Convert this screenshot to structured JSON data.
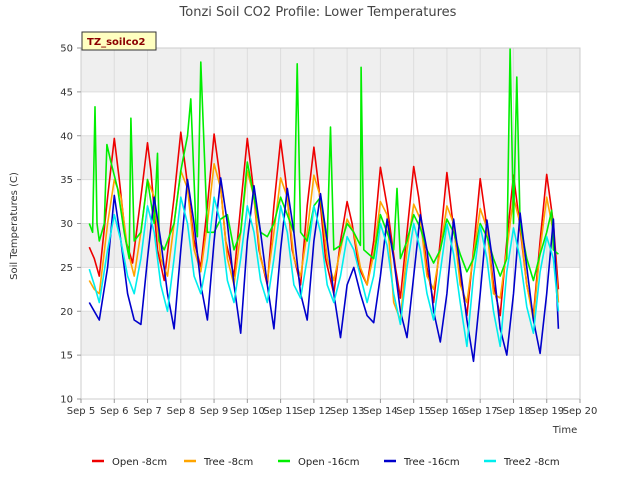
{
  "chart_data": {
    "type": "line",
    "title": "Tonzi Soil CO2 Profile: Lower Temperatures",
    "xlabel": "Time",
    "ylabel": "Soil Temperatures (C)",
    "tag": "TZ_soilco2",
    "xlim": [
      5,
      20
    ],
    "ylim": [
      10,
      50
    ],
    "x_ticks": [
      5,
      6,
      7,
      8,
      9,
      10,
      11,
      12,
      13,
      14,
      15,
      16,
      17,
      18,
      19,
      20
    ],
    "x_tick_labels": [
      "Sep 5",
      "Sep 6",
      "Sep 7",
      "Sep 8",
      "Sep 9",
      "Sep 10",
      "Sep 11",
      "Sep 12",
      "Sep 13",
      "Sep 14",
      "Sep 15",
      "Sep 16",
      "Sep 17",
      "Sep 18",
      "Sep 19",
      "Sep 20"
    ],
    "y_ticks": [
      10,
      15,
      20,
      25,
      30,
      35,
      40,
      45,
      50
    ],
    "y_tick_labels": [
      "10",
      "15",
      "20",
      "25",
      "30",
      "35",
      "40",
      "45",
      "50"
    ],
    "grid": true,
    "legend_position": "bottom",
    "series": [
      {
        "name": "Open -8cm",
        "color": "#ee0000",
        "x": [
          5.25,
          5.4,
          5.55,
          5.8,
          6.0,
          6.15,
          6.35,
          6.55,
          6.8,
          7.0,
          7.1,
          7.3,
          7.5,
          7.8,
          8.0,
          8.15,
          8.4,
          8.6,
          8.8,
          9.0,
          9.15,
          9.35,
          9.6,
          9.8,
          10.0,
          10.15,
          10.35,
          10.6,
          10.8,
          11.0,
          11.15,
          11.35,
          11.6,
          11.8,
          12.0,
          12.15,
          12.35,
          12.6,
          12.8,
          13.0,
          13.15,
          13.35,
          13.6,
          13.8,
          14.0,
          14.2,
          14.45,
          14.6,
          14.8,
          15.0,
          15.15,
          15.4,
          15.6,
          15.8,
          16.0,
          16.15,
          16.4,
          16.6,
          16.8,
          17.0,
          17.15,
          17.4,
          17.6,
          17.8,
          18.0,
          18.15,
          18.4,
          18.6,
          18.8,
          19.0,
          19.2,
          19.35
        ],
        "y": [
          27.3,
          26.0,
          24.0,
          33.0,
          39.7,
          35.0,
          28.0,
          25.5,
          33.0,
          39.2,
          36.0,
          27.0,
          23.5,
          33.0,
          40.4,
          36.0,
          28.0,
          25.0,
          32.0,
          40.2,
          36.0,
          28.0,
          24.0,
          32.0,
          39.7,
          35.0,
          27.0,
          23.0,
          32.0,
          39.5,
          35.0,
          27.0,
          23.0,
          32.0,
          38.7,
          34.0,
          26.0,
          22.0,
          28.0,
          32.5,
          30.0,
          25.0,
          23.0,
          28.0,
          36.4,
          32.0,
          25.0,
          21.5,
          29.0,
          36.5,
          33.0,
          25.0,
          21.0,
          28.0,
          35.8,
          31.0,
          24.0,
          19.5,
          27.0,
          35.1,
          31.0,
          23.0,
          19.5,
          28.0,
          35.5,
          31.0,
          23.0,
          19.5,
          28.0,
          35.6,
          30.0,
          22.5
        ]
      },
      {
        "name": "Tree -8cm",
        "color": "#ffa500",
        "x": [
          5.25,
          5.4,
          5.55,
          5.8,
          6.0,
          6.2,
          6.4,
          6.6,
          6.8,
          7.0,
          7.2,
          7.4,
          7.6,
          7.8,
          8.0,
          8.2,
          8.4,
          8.6,
          8.8,
          9.0,
          9.2,
          9.4,
          9.6,
          9.8,
          10.0,
          10.2,
          10.4,
          10.6,
          10.8,
          11.0,
          11.2,
          11.4,
          11.6,
          11.8,
          12.0,
          12.2,
          12.4,
          12.6,
          12.8,
          13.0,
          13.2,
          13.4,
          13.6,
          13.8,
          14.0,
          14.2,
          14.4,
          14.6,
          14.8,
          15.0,
          15.2,
          15.4,
          15.6,
          15.8,
          16.0,
          16.2,
          16.4,
          16.6,
          16.8,
          17.0,
          17.2,
          17.4,
          17.6,
          17.8,
          18.0,
          18.2,
          18.4,
          18.6,
          18.8,
          19.0,
          19.2,
          19.35
        ],
        "y": [
          23.5,
          22.5,
          22.0,
          30.0,
          35.0,
          33.0,
          27.0,
          24.0,
          29.0,
          35.0,
          33.0,
          26.0,
          24.0,
          30.0,
          36.0,
          34.0,
          27.0,
          24.5,
          30.0,
          36.8,
          34.0,
          26.0,
          23.0,
          29.0,
          36.0,
          33.0,
          26.0,
          23.5,
          29.0,
          35.2,
          33.0,
          26.0,
          24.0,
          29.0,
          35.5,
          33.0,
          26.0,
          23.5,
          27.0,
          30.5,
          29.0,
          25.0,
          23.0,
          26.5,
          32.5,
          31.0,
          21.0,
          19.0,
          27.0,
          32.2,
          30.5,
          24.0,
          22.5,
          27.0,
          32.0,
          30.0,
          23.0,
          21.0,
          26.5,
          31.7,
          29.5,
          22.0,
          21.5,
          27.0,
          33.0,
          30.0,
          23.0,
          19.0,
          27.0,
          33.0,
          29.0,
          21.0
        ]
      },
      {
        "name": "Open -16cm",
        "color": "#00ee00",
        "x": [
          5.25,
          5.35,
          5.42,
          5.48,
          5.55,
          5.7,
          5.78,
          5.9,
          6.1,
          6.3,
          6.45,
          6.5,
          6.6,
          6.8,
          7.0,
          7.2,
          7.3,
          7.35,
          7.5,
          7.8,
          8.0,
          8.2,
          8.3,
          8.45,
          8.5,
          8.6,
          8.8,
          9.0,
          9.2,
          9.4,
          9.6,
          9.8,
          10.0,
          10.2,
          10.4,
          10.6,
          10.8,
          11.0,
          11.2,
          11.4,
          11.5,
          11.6,
          11.8,
          12.0,
          12.2,
          12.4,
          12.5,
          12.6,
          12.8,
          13.0,
          13.2,
          13.4,
          13.42,
          13.5,
          13.8,
          14.0,
          14.2,
          14.4,
          14.5,
          14.6,
          14.8,
          15.0,
          15.2,
          15.4,
          15.6,
          15.8,
          16.0,
          16.2,
          16.4,
          16.6,
          16.8,
          17.0,
          17.2,
          17.4,
          17.6,
          17.8,
          17.9,
          18.0,
          18.1,
          18.2,
          18.4,
          18.6,
          18.8,
          19.0,
          19.15,
          19.2,
          19.35
        ],
        "y": [
          30.0,
          29.0,
          43.3,
          30.0,
          28.0,
          30.0,
          39.0,
          37.0,
          34.0,
          29.0,
          26.0,
          42.0,
          28.0,
          29.0,
          35.0,
          30.0,
          38.0,
          28.0,
          27.0,
          30.0,
          36.0,
          40.0,
          44.2,
          30.0,
          28.5,
          48.4,
          29.0,
          29.0,
          30.5,
          31.0,
          27.0,
          29.0,
          37.0,
          33.0,
          29.0,
          28.5,
          30.0,
          33.0,
          31.0,
          29.0,
          48.2,
          29.0,
          28.0,
          32.0,
          33.0,
          28.0,
          41.0,
          27.0,
          27.5,
          30.0,
          29.0,
          27.5,
          47.8,
          27.0,
          26.0,
          31.0,
          29.0,
          27.0,
          34.0,
          26.0,
          28.0,
          31.0,
          29.5,
          27.0,
          25.5,
          27.0,
          30.5,
          29.0,
          26.5,
          24.5,
          26.0,
          30.0,
          28.5,
          26.0,
          24.0,
          26.0,
          49.9,
          30.0,
          46.7,
          30.0,
          26.0,
          23.5,
          26.5,
          29.0,
          31.5,
          27.0,
          26.5
        ]
      },
      {
        "name": "Tree -16cm",
        "color": "#0000cc",
        "x": [
          5.25,
          5.4,
          5.55,
          5.8,
          6.0,
          6.2,
          6.4,
          6.6,
          6.8,
          7.0,
          7.2,
          7.4,
          7.6,
          7.8,
          8.0,
          8.2,
          8.4,
          8.6,
          8.8,
          9.0,
          9.2,
          9.4,
          9.6,
          9.8,
          10.0,
          10.2,
          10.4,
          10.6,
          10.8,
          11.0,
          11.2,
          11.4,
          11.6,
          11.8,
          12.0,
          12.2,
          12.4,
          12.6,
          12.8,
          13.0,
          13.2,
          13.4,
          13.6,
          13.8,
          14.0,
          14.2,
          14.4,
          14.6,
          14.8,
          15.0,
          15.2,
          15.4,
          15.6,
          15.8,
          16.0,
          16.2,
          16.4,
          16.6,
          16.8,
          17.0,
          17.2,
          17.4,
          17.6,
          17.8,
          18.0,
          18.2,
          18.4,
          18.6,
          18.8,
          19.0,
          19.2,
          19.35
        ],
        "y": [
          21.0,
          20.0,
          19.0,
          25.0,
          33.2,
          28.0,
          22.0,
          19.0,
          18.5,
          26.0,
          33.0,
          28.0,
          22.0,
          18.0,
          27.0,
          35.0,
          30.0,
          23.0,
          19.0,
          28.0,
          35.2,
          30.0,
          23.0,
          17.5,
          28.0,
          34.3,
          29.0,
          23.0,
          18.0,
          27.0,
          34.0,
          29.0,
          22.0,
          19.0,
          28.0,
          33.4,
          28.0,
          22.0,
          17.0,
          23.0,
          25.0,
          22.0,
          19.5,
          18.7,
          24.0,
          30.5,
          26.0,
          20.0,
          17.0,
          24.0,
          31.0,
          27.0,
          20.0,
          16.5,
          22.0,
          30.5,
          25.0,
          19.0,
          14.3,
          22.0,
          30.4,
          25.0,
          18.0,
          15.0,
          22.0,
          31.2,
          25.0,
          19.0,
          15.2,
          22.0,
          30.5,
          18.0
        ]
      },
      {
        "name": "Tree2 -8cm",
        "color": "#00eeee",
        "x": [
          5.25,
          5.4,
          5.55,
          5.8,
          6.0,
          6.2,
          6.4,
          6.6,
          6.8,
          7.0,
          7.2,
          7.4,
          7.6,
          7.8,
          8.0,
          8.2,
          8.4,
          8.6,
          8.8,
          9.0,
          9.2,
          9.4,
          9.6,
          9.8,
          10.0,
          10.2,
          10.4,
          10.6,
          10.8,
          11.0,
          11.2,
          11.4,
          11.6,
          11.8,
          12.0,
          12.2,
          12.4,
          12.6,
          12.8,
          13.0,
          13.2,
          13.4,
          13.6,
          13.8,
          14.0,
          14.2,
          14.4,
          14.6,
          14.8,
          15.0,
          15.2,
          15.4,
          15.6,
          15.8,
          16.0,
          16.2,
          16.4,
          16.6,
          16.8,
          17.0,
          17.2,
          17.4,
          17.6,
          17.8,
          18.0,
          18.2,
          18.4,
          18.6,
          18.8,
          19.0,
          19.2,
          19.35
        ],
        "y": [
          24.8,
          23.0,
          21.0,
          27.0,
          31.0,
          28.0,
          24.0,
          22.0,
          26.0,
          32.0,
          29.0,
          23.0,
          20.0,
          26.0,
          33.0,
          30.0,
          24.0,
          22.0,
          26.0,
          33.0,
          30.0,
          23.5,
          21.0,
          26.0,
          32.0,
          29.0,
          23.5,
          21.0,
          26.0,
          32.0,
          29.0,
          23.0,
          21.5,
          26.0,
          32.0,
          29.0,
          23.0,
          21.0,
          24.0,
          28.5,
          27.0,
          24.0,
          21.0,
          24.0,
          30.0,
          27.5,
          22.0,
          18.5,
          25.0,
          30.0,
          27.0,
          22.0,
          19.0,
          24.5,
          30.0,
          26.5,
          21.0,
          16.0,
          24.0,
          29.7,
          26.0,
          20.0,
          16.0,
          24.5,
          29.5,
          26.0,
          20.5,
          17.5,
          24.5,
          28.5,
          26.0,
          20.0
        ]
      }
    ]
  }
}
